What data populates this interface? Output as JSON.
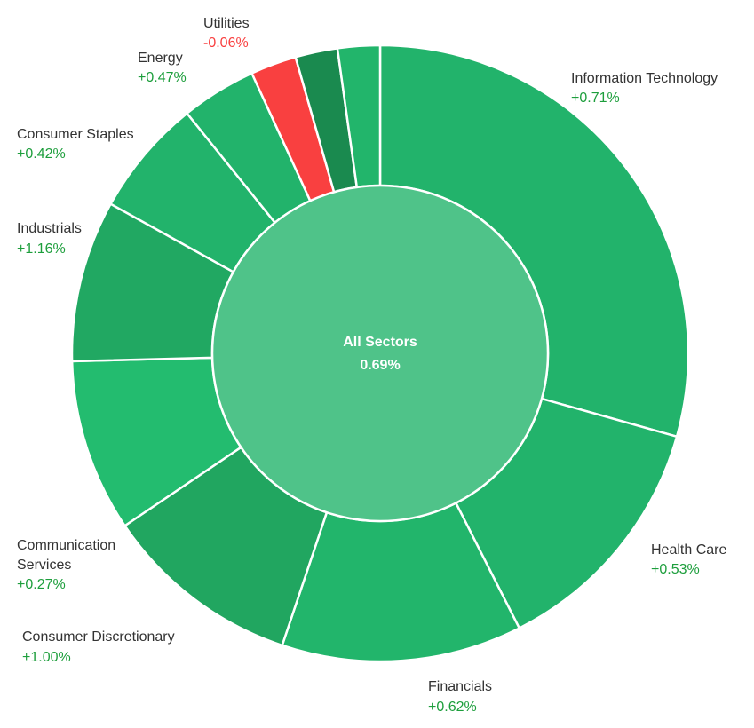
{
  "chart_data": {
    "type": "pie",
    "center": {
      "label": "All Sectors",
      "value": "0.69%"
    },
    "categories": [
      "Information Technology",
      "Health Care",
      "Financials",
      "Consumer Discretionary",
      "Communication Services",
      "Industrials",
      "Consumer Staples",
      "Energy",
      "Utilities",
      "",
      ""
    ],
    "values": [
      30.5,
      13.7,
      13.1,
      10.8,
      9.4,
      8.8,
      6.4,
      4.1,
      2.5,
      2.3,
      2.3
    ],
    "changes": [
      "+0.71%",
      "+0.53%",
      "+0.62%",
      "+1.00%",
      "+0.27%",
      "+1.16%",
      "+0.42%",
      "+0.47%",
      "-0.06%",
      "",
      ""
    ],
    "colors": [
      "#22b36b",
      "#22b36b",
      "#22b56b",
      "#21a660",
      "#23bc6f",
      "#21a862",
      "#22b36b",
      "#22b36b",
      "#f94040",
      "#1a8a4f",
      "#22b56b"
    ],
    "center_color": "#4fc389",
    "positive_text_color": "#1d9e3c",
    "negative_text_color": "#f94040"
  }
}
